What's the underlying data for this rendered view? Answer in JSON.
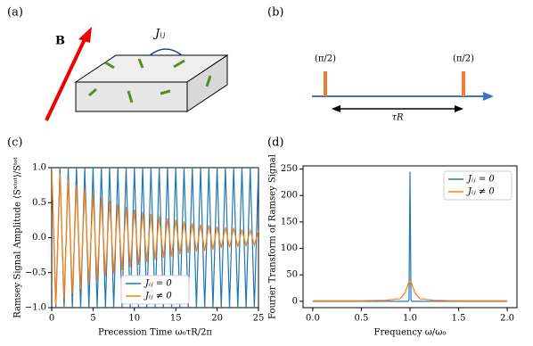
{
  "panel_labels": [
    "(a)",
    "(b)",
    "(c)",
    "(d)"
  ],
  "diagram_a": {
    "field_label": "B",
    "coupling_label": "Jᵢⱼ"
  },
  "diagram_b": {
    "pulse_labels": [
      "(π/2)",
      "(π/2)"
    ],
    "interval_label": "τR"
  },
  "chart_data": [
    {
      "type": "line",
      "x_label": "Precession Time ω₀τR/2π",
      "y_label": "Ramsey Signal Amplitude ⟨Sˣᵗᵒᵗ⟩/Sᵗᵒᵗ",
      "x": [
        0,
        0.5,
        1,
        1.5,
        2,
        2.5,
        3,
        3.5,
        4,
        4.5,
        5,
        5.5,
        6,
        6.5,
        7,
        7.5,
        8,
        8.5,
        9,
        9.5,
        10,
        10.5,
        11,
        11.5,
        12,
        12.5,
        13,
        13.5,
        14,
        14.5,
        15,
        15.5,
        16,
        16.5,
        17,
        17.5,
        18,
        18.5,
        19,
        19.5,
        20,
        20.5,
        21,
        21.5,
        22,
        22.5,
        23,
        23.5,
        24,
        24.5,
        25
      ],
      "series": [
        {
          "name": "Jᵢⱼ = 0",
          "color": "#1f77b4",
          "values": [
            1,
            -1,
            1,
            -1,
            1,
            -1,
            1,
            -1,
            1,
            -1,
            1,
            -1,
            1,
            -1,
            1,
            -1,
            1,
            -1,
            1,
            -1,
            1,
            -1,
            1,
            -1,
            1,
            -1,
            1,
            -1,
            1,
            -1,
            1,
            -1,
            1,
            -1,
            1,
            -1,
            1,
            -1,
            1,
            -1,
            1,
            -1,
            1,
            -1,
            1,
            -1,
            1,
            -1,
            1,
            -1,
            1
          ]
        },
        {
          "name": "Jᵢⱼ ≠ 0",
          "color": "#ff7f0e",
          "values": [
            1.0,
            -0.96,
            0.91,
            -0.87,
            0.83,
            -0.8,
            0.76,
            -0.73,
            0.7,
            -0.66,
            0.63,
            -0.61,
            0.58,
            -0.55,
            0.53,
            -0.51,
            0.48,
            -0.46,
            0.44,
            -0.42,
            0.4,
            -0.39,
            0.37,
            -0.35,
            0.34,
            -0.32,
            0.31,
            -0.29,
            0.28,
            -0.27,
            0.26,
            -0.24,
            0.23,
            -0.22,
            0.21,
            -0.2,
            0.19,
            -0.19,
            0.18,
            -0.17,
            0.16,
            -0.15,
            0.15,
            -0.14,
            0.14,
            -0.13,
            0.12,
            -0.12,
            0.11,
            -0.11,
            0.1
          ]
        }
      ],
      "xlim": [
        0,
        25
      ],
      "ylim": [
        -1,
        1
      ],
      "xticks": [
        0,
        5,
        10,
        15,
        20,
        25
      ],
      "yticks": [
        {
          "value": -1,
          "label": "−1.0"
        },
        {
          "value": -0.5,
          "label": "−0.5"
        },
        {
          "value": 0,
          "label": "0.0"
        },
        {
          "value": 0.5,
          "label": "0.5"
        },
        {
          "value": 1,
          "label": "1.0"
        }
      ],
      "legend": "lower center"
    },
    {
      "type": "line",
      "x_label": "Frequency ω/ω₀",
      "y_label": "Fourier Transform of Ramsey Signal",
      "x": [
        0,
        0.25,
        0.5,
        0.75,
        0.9,
        0.95,
        0.98,
        0.99,
        1.0,
        1.01,
        1.02,
        1.05,
        1.1,
        1.25,
        1.5,
        1.75,
        2.0
      ],
      "series": [
        {
          "name": "Jᵢⱼ = 0",
          "color": "#1f77b4",
          "values": [
            0,
            0,
            0,
            0,
            0,
            0,
            0,
            3,
            245,
            3,
            0,
            0,
            0,
            0,
            0,
            0,
            0
          ]
        },
        {
          "name": "Jᵢⱼ ≠ 0",
          "color": "#ff7f0e",
          "values": [
            1,
            1,
            1,
            2,
            5,
            16,
            32,
            38,
            40,
            38,
            32,
            16,
            5,
            2,
            1,
            1,
            1
          ]
        }
      ],
      "xlim": [
        -0.1,
        2.1
      ],
      "ylim": [
        -12,
        256
      ],
      "xticks": [
        {
          "value": 0,
          "label": "0.0"
        },
        {
          "value": 0.5,
          "label": "0.5"
        },
        {
          "value": 1,
          "label": "1.0"
        },
        {
          "value": 1.5,
          "label": "1.5"
        },
        {
          "value": 2,
          "label": "2.0"
        }
      ],
      "yticks": [
        0,
        50,
        100,
        150,
        200,
        250
      ],
      "legend": "upper right"
    }
  ]
}
